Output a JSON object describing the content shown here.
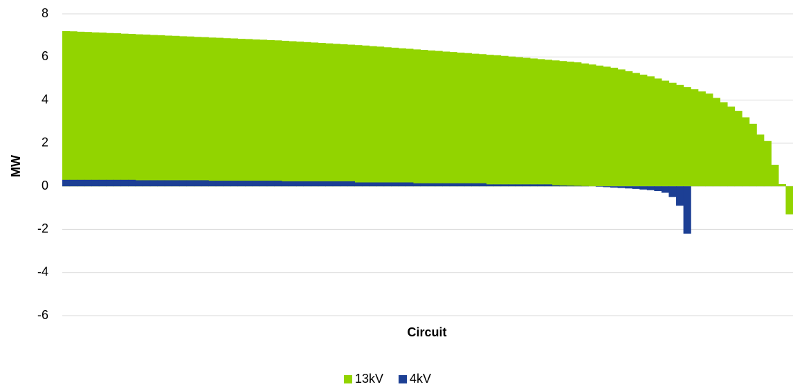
{
  "chart_data": {
    "type": "bar",
    "x_label": "Circuit",
    "y_label": "MW",
    "categories": [
      null,
      null,
      null,
      null,
      null,
      null,
      null,
      null,
      null,
      null,
      null,
      null,
      null,
      null,
      null,
      null,
      null,
      null,
      null,
      null,
      null,
      null,
      null,
      null,
      null,
      null,
      null,
      null,
      null,
      null,
      null,
      null,
      null,
      null,
      null,
      null,
      null,
      null,
      null,
      null,
      null,
      null,
      null,
      null,
      null,
      null,
      null,
      null,
      null,
      null,
      null,
      null,
      null,
      null,
      null,
      null,
      null,
      null,
      null,
      null,
      null,
      null,
      null,
      null,
      null,
      null,
      null,
      null,
      null,
      null,
      null,
      null,
      null,
      null,
      null,
      null,
      null,
      null,
      null,
      null,
      null,
      null,
      null,
      null,
      null,
      null,
      null,
      null,
      null,
      null,
      null,
      null,
      null,
      null,
      null,
      null,
      null,
      null,
      null,
      null
    ],
    "series": [
      {
        "name": "13kV",
        "color": "#92d400",
        "values": [
          7.2,
          7.19,
          7.17,
          7.16,
          7.14,
          7.13,
          7.11,
          7.1,
          7.08,
          7.07,
          7.05,
          7.04,
          7.02,
          7.01,
          6.99,
          6.98,
          6.96,
          6.95,
          6.93,
          6.92,
          6.9,
          6.89,
          6.87,
          6.86,
          6.84,
          6.83,
          6.81,
          6.8,
          6.78,
          6.77,
          6.75,
          6.73,
          6.71,
          6.69,
          6.67,
          6.65,
          6.63,
          6.61,
          6.59,
          6.57,
          6.55,
          6.53,
          6.5,
          6.48,
          6.45,
          6.43,
          6.4,
          6.38,
          6.35,
          6.33,
          6.3,
          6.28,
          6.25,
          6.23,
          6.2,
          6.18,
          6.15,
          6.13,
          6.1,
          6.08,
          6.05,
          6.02,
          5.99,
          5.96,
          5.93,
          5.9,
          5.87,
          5.84,
          5.81,
          5.78,
          5.75,
          5.7,
          5.65,
          5.6,
          5.55,
          5.5,
          5.42,
          5.34,
          5.26,
          5.18,
          5.1,
          5.0,
          4.9,
          4.8,
          4.7,
          4.6,
          4.5,
          4.4,
          4.3,
          4.1,
          3.9,
          3.7,
          3.5,
          3.2,
          2.9,
          2.4,
          2.1,
          1.0,
          0.1,
          -1.3
        ]
      },
      {
        "name": "4kV",
        "color": "#1c3f94",
        "values": [
          0.3,
          0.3,
          0.3,
          0.3,
          0.3,
          0.3,
          0.3,
          0.3,
          0.3,
          0.3,
          0.28,
          0.28,
          0.28,
          0.28,
          0.28,
          0.28,
          0.28,
          0.28,
          0.28,
          0.28,
          0.26,
          0.26,
          0.26,
          0.26,
          0.26,
          0.26,
          0.26,
          0.26,
          0.26,
          0.26,
          0.23,
          0.23,
          0.23,
          0.23,
          0.23,
          0.23,
          0.23,
          0.23,
          0.23,
          0.23,
          0.18,
          0.18,
          0.18,
          0.18,
          0.18,
          0.18,
          0.18,
          0.18,
          0.14,
          0.14,
          0.14,
          0.14,
          0.14,
          0.14,
          0.14,
          0.14,
          0.14,
          0.14,
          0.09,
          0.09,
          0.09,
          0.09,
          0.09,
          0.09,
          0.09,
          0.09,
          0.09,
          0.05,
          0.04,
          0.03,
          0.02,
          0.01,
          0,
          -0.02,
          -0.04,
          -0.06,
          -0.08,
          -0.1,
          -0.12,
          -0.15,
          -0.18,
          -0.22,
          -0.3,
          -0.5,
          -0.9,
          -2.2,
          null,
          null,
          null,
          null,
          null,
          null,
          null,
          null,
          null,
          null,
          null,
          null,
          null,
          null
        ]
      }
    ],
    "ylim": [
      -6,
      8
    ],
    "yticks": [
      -6,
      -4,
      -2,
      0,
      2,
      4,
      6,
      8
    ],
    "grid": true,
    "legend": "bottom"
  }
}
